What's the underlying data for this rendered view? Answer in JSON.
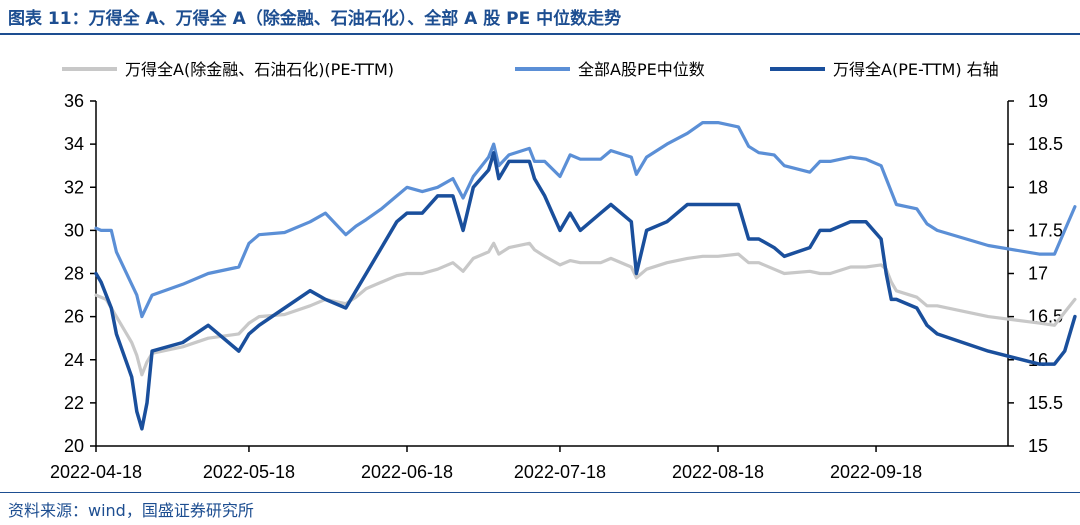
{
  "header": {
    "title": "图表 11：万得全 A、万得全 A（除金融、石油石化）、全部 A 股 PE 中位数走势"
  },
  "footer": {
    "source": "资料来源：wind，国盛证券研究所"
  },
  "chart_data": {
    "type": "line",
    "title": "图表 11：万得全 A、万得全 A（除金融、石油石化）、全部 A 股 PE 中位数走势",
    "x_ticks": [
      "2022-04-18",
      "2022-05-18",
      "2022-06-18",
      "2022-07-18",
      "2022-08-18",
      "2022-09-18"
    ],
    "ylim_left": [
      20,
      36
    ],
    "yticks_left": [
      20,
      22,
      24,
      26,
      28,
      30,
      32,
      34,
      36
    ],
    "ylim_right": [
      15,
      19
    ],
    "yticks_right": [
      15,
      15.5,
      16,
      16.5,
      17,
      17.5,
      18,
      18.5,
      19
    ],
    "legend_position": "top",
    "grid": false,
    "series": [
      {
        "name": "万得全A(除金融、石油石化)(PE-TTM)",
        "axis": "left",
        "color": "#c8c8c8",
        "points": [
          [
            "2022-04-18",
            27.0
          ],
          [
            "2022-04-20",
            26.8
          ],
          [
            "2022-04-22",
            26.0
          ],
          [
            "2022-04-25",
            24.8
          ],
          [
            "2022-04-26",
            24.2
          ],
          [
            "2022-04-27",
            23.3
          ],
          [
            "2022-04-28",
            23.9
          ],
          [
            "2022-04-29",
            24.3
          ],
          [
            "2022-05-05",
            24.6
          ],
          [
            "2022-05-10",
            25.0
          ],
          [
            "2022-05-16",
            25.2
          ],
          [
            "2022-05-18",
            25.7
          ],
          [
            "2022-05-20",
            26.0
          ],
          [
            "2022-05-25",
            26.1
          ],
          [
            "2022-05-30",
            26.5
          ],
          [
            "2022-06-02",
            26.8
          ],
          [
            "2022-06-06",
            26.6
          ],
          [
            "2022-06-08",
            26.9
          ],
          [
            "2022-06-10",
            27.3
          ],
          [
            "2022-06-13",
            27.6
          ],
          [
            "2022-06-16",
            27.9
          ],
          [
            "2022-06-18",
            28.0
          ],
          [
            "2022-06-21",
            28.0
          ],
          [
            "2022-06-24",
            28.2
          ],
          [
            "2022-06-27",
            28.5
          ],
          [
            "2022-06-29",
            28.1
          ],
          [
            "2022-07-01",
            28.7
          ],
          [
            "2022-07-04",
            29.0
          ],
          [
            "2022-07-05",
            29.4
          ],
          [
            "2022-07-06",
            28.9
          ],
          [
            "2022-07-08",
            29.2
          ],
          [
            "2022-07-12",
            29.4
          ],
          [
            "2022-07-13",
            29.1
          ],
          [
            "2022-07-15",
            28.8
          ],
          [
            "2022-07-18",
            28.4
          ],
          [
            "2022-07-20",
            28.6
          ],
          [
            "2022-07-22",
            28.5
          ],
          [
            "2022-07-26",
            28.5
          ],
          [
            "2022-07-28",
            28.7
          ],
          [
            "2022-08-01",
            28.3
          ],
          [
            "2022-08-02",
            27.8
          ],
          [
            "2022-08-04",
            28.2
          ],
          [
            "2022-08-08",
            28.5
          ],
          [
            "2022-08-12",
            28.7
          ],
          [
            "2022-08-15",
            28.8
          ],
          [
            "2022-08-18",
            28.8
          ],
          [
            "2022-08-22",
            28.9
          ],
          [
            "2022-08-24",
            28.5
          ],
          [
            "2022-08-26",
            28.5
          ],
          [
            "2022-08-29",
            28.2
          ],
          [
            "2022-08-31",
            28.0
          ],
          [
            "2022-09-05",
            28.1
          ],
          [
            "2022-09-07",
            28.0
          ],
          [
            "2022-09-09",
            28.0
          ],
          [
            "2022-09-13",
            28.3
          ],
          [
            "2022-09-16",
            28.3
          ],
          [
            "2022-09-19",
            28.4
          ],
          [
            "2022-09-20",
            28.2
          ],
          [
            "2022-09-21",
            27.6
          ],
          [
            "2022-09-22",
            27.2
          ],
          [
            "2022-09-26",
            26.9
          ],
          [
            "2022-09-28",
            26.5
          ],
          [
            "2022-09-30",
            26.5
          ],
          [
            "2022-10-10",
            26.0
          ],
          [
            "2022-10-20",
            25.7
          ],
          [
            "2022-10-23",
            25.6
          ],
          [
            "2022-10-25",
            26.2
          ],
          [
            "2022-10-27",
            26.8
          ]
        ]
      },
      {
        "name": "全部A股PE中位数",
        "axis": "left",
        "color": "#5b8fd6",
        "points": [
          [
            "2022-04-18",
            30.1
          ],
          [
            "2022-04-19",
            30.0
          ],
          [
            "2022-04-21",
            30.0
          ],
          [
            "2022-04-22",
            29.0
          ],
          [
            "2022-04-25",
            27.5
          ],
          [
            "2022-04-26",
            27.0
          ],
          [
            "2022-04-27",
            26.0
          ],
          [
            "2022-04-28",
            26.5
          ],
          [
            "2022-04-29",
            27.0
          ],
          [
            "2022-05-05",
            27.5
          ],
          [
            "2022-05-10",
            28.0
          ],
          [
            "2022-05-16",
            28.3
          ],
          [
            "2022-05-18",
            29.4
          ],
          [
            "2022-05-20",
            29.8
          ],
          [
            "2022-05-25",
            29.9
          ],
          [
            "2022-05-30",
            30.4
          ],
          [
            "2022-06-02",
            30.8
          ],
          [
            "2022-06-06",
            29.8
          ],
          [
            "2022-06-08",
            30.2
          ],
          [
            "2022-06-10",
            30.5
          ],
          [
            "2022-06-13",
            31.0
          ],
          [
            "2022-06-16",
            31.6
          ],
          [
            "2022-06-18",
            32.0
          ],
          [
            "2022-06-21",
            31.8
          ],
          [
            "2022-06-24",
            32.0
          ],
          [
            "2022-06-27",
            32.4
          ],
          [
            "2022-06-29",
            31.5
          ],
          [
            "2022-07-01",
            32.5
          ],
          [
            "2022-07-04",
            33.4
          ],
          [
            "2022-07-05",
            34.0
          ],
          [
            "2022-07-06",
            33.0
          ],
          [
            "2022-07-08",
            33.5
          ],
          [
            "2022-07-12",
            33.8
          ],
          [
            "2022-07-13",
            33.2
          ],
          [
            "2022-07-15",
            33.2
          ],
          [
            "2022-07-18",
            32.5
          ],
          [
            "2022-07-20",
            33.5
          ],
          [
            "2022-07-22",
            33.3
          ],
          [
            "2022-07-26",
            33.3
          ],
          [
            "2022-07-28",
            33.7
          ],
          [
            "2022-08-01",
            33.4
          ],
          [
            "2022-08-02",
            32.6
          ],
          [
            "2022-08-04",
            33.4
          ],
          [
            "2022-08-08",
            34.0
          ],
          [
            "2022-08-12",
            34.5
          ],
          [
            "2022-08-15",
            35.0
          ],
          [
            "2022-08-18",
            35.0
          ],
          [
            "2022-08-22",
            34.8
          ],
          [
            "2022-08-24",
            33.9
          ],
          [
            "2022-08-26",
            33.6
          ],
          [
            "2022-08-29",
            33.5
          ],
          [
            "2022-08-31",
            33.0
          ],
          [
            "2022-09-05",
            32.7
          ],
          [
            "2022-09-07",
            33.2
          ],
          [
            "2022-09-09",
            33.2
          ],
          [
            "2022-09-13",
            33.4
          ],
          [
            "2022-09-16",
            33.3
          ],
          [
            "2022-09-19",
            33.0
          ],
          [
            "2022-09-20",
            32.4
          ],
          [
            "2022-09-21",
            31.8
          ],
          [
            "2022-09-22",
            31.2
          ],
          [
            "2022-09-26",
            31.0
          ],
          [
            "2022-09-28",
            30.3
          ],
          [
            "2022-09-30",
            30.0
          ],
          [
            "2022-10-10",
            29.3
          ],
          [
            "2022-10-20",
            28.9
          ],
          [
            "2022-10-23",
            28.9
          ],
          [
            "2022-10-25",
            30.0
          ],
          [
            "2022-10-27",
            31.1
          ]
        ]
      },
      {
        "name": "万得全A(PE-TTM) 右轴",
        "axis": "right",
        "color": "#1a4f9c",
        "points": [
          [
            "2022-04-18",
            17.0
          ],
          [
            "2022-04-19",
            16.9
          ],
          [
            "2022-04-21",
            16.6
          ],
          [
            "2022-04-22",
            16.3
          ],
          [
            "2022-04-25",
            15.8
          ],
          [
            "2022-04-26",
            15.4
          ],
          [
            "2022-04-27",
            15.2
          ],
          [
            "2022-04-28",
            15.5
          ],
          [
            "2022-04-29",
            16.1
          ],
          [
            "2022-05-05",
            16.2
          ],
          [
            "2022-05-10",
            16.4
          ],
          [
            "2022-05-16",
            16.1
          ],
          [
            "2022-05-18",
            16.3
          ],
          [
            "2022-05-20",
            16.4
          ],
          [
            "2022-05-25",
            16.6
          ],
          [
            "2022-05-30",
            16.8
          ],
          [
            "2022-06-02",
            16.7
          ],
          [
            "2022-06-06",
            16.6
          ],
          [
            "2022-06-08",
            16.8
          ],
          [
            "2022-06-10",
            17.0
          ],
          [
            "2022-06-13",
            17.3
          ],
          [
            "2022-06-16",
            17.6
          ],
          [
            "2022-06-18",
            17.7
          ],
          [
            "2022-06-21",
            17.7
          ],
          [
            "2022-06-24",
            17.9
          ],
          [
            "2022-06-27",
            17.9
          ],
          [
            "2022-06-29",
            17.5
          ],
          [
            "2022-07-01",
            18.0
          ],
          [
            "2022-07-04",
            18.2
          ],
          [
            "2022-07-05",
            18.4
          ],
          [
            "2022-07-06",
            18.1
          ],
          [
            "2022-07-08",
            18.3
          ],
          [
            "2022-07-12",
            18.3
          ],
          [
            "2022-07-13",
            18.1
          ],
          [
            "2022-07-15",
            17.9
          ],
          [
            "2022-07-18",
            17.5
          ],
          [
            "2022-07-20",
            17.7
          ],
          [
            "2022-07-22",
            17.5
          ],
          [
            "2022-07-26",
            17.7
          ],
          [
            "2022-07-28",
            17.8
          ],
          [
            "2022-08-01",
            17.6
          ],
          [
            "2022-08-02",
            17.0
          ],
          [
            "2022-08-04",
            17.5
          ],
          [
            "2022-08-08",
            17.6
          ],
          [
            "2022-08-12",
            17.8
          ],
          [
            "2022-08-15",
            17.8
          ],
          [
            "2022-08-18",
            17.8
          ],
          [
            "2022-08-22",
            17.8
          ],
          [
            "2022-08-24",
            17.4
          ],
          [
            "2022-08-26",
            17.4
          ],
          [
            "2022-08-29",
            17.3
          ],
          [
            "2022-08-31",
            17.2
          ],
          [
            "2022-09-05",
            17.3
          ],
          [
            "2022-09-07",
            17.5
          ],
          [
            "2022-09-09",
            17.5
          ],
          [
            "2022-09-13",
            17.6
          ],
          [
            "2022-09-16",
            17.6
          ],
          [
            "2022-09-19",
            17.4
          ],
          [
            "2022-09-20",
            17.0
          ],
          [
            "2022-09-21",
            16.7
          ],
          [
            "2022-09-22",
            16.7
          ],
          [
            "2022-09-26",
            16.6
          ],
          [
            "2022-09-28",
            16.4
          ],
          [
            "2022-09-30",
            16.3
          ],
          [
            "2022-10-10",
            16.1
          ],
          [
            "2022-10-20",
            15.95
          ],
          [
            "2022-10-23",
            15.95
          ],
          [
            "2022-10-25",
            16.1
          ],
          [
            "2022-10-27",
            16.5
          ]
        ]
      }
    ]
  }
}
